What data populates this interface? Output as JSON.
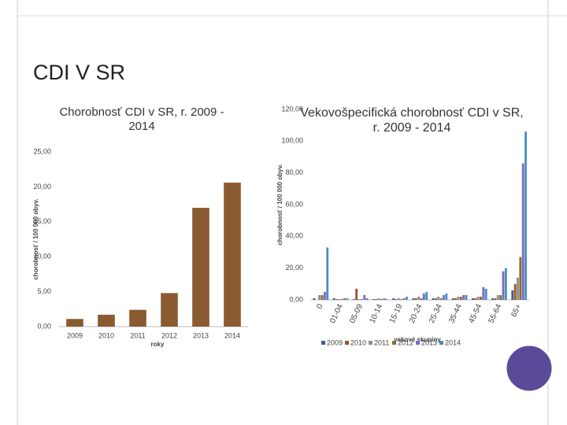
{
  "slide_title": "CDI V SR",
  "chart_data": [
    {
      "type": "bar",
      "title": "Chorobnosť CDI v SR, r. 2009 - 2014",
      "x_label": "roky",
      "y_label": "chorobnosť / 100 000 obyv.",
      "categories": [
        "2009",
        "2010",
        "2011",
        "2012",
        "2013",
        "2014"
      ],
      "values": [
        1.1,
        1.7,
        2.4,
        4.8,
        17.0,
        20.6
      ],
      "color": "#8a5a30",
      "ylim": [
        0,
        25
      ],
      "yticks": [
        {
          "value": 0,
          "label": "0,00"
        },
        {
          "value": 5,
          "label": "5,00"
        },
        {
          "value": 10,
          "label": "10,00"
        },
        {
          "value": 15,
          "label": "15,00"
        },
        {
          "value": 20,
          "label": "20,00"
        },
        {
          "value": 25,
          "label": "25,00"
        }
      ]
    },
    {
      "type": "bar",
      "title": "Vekovošpecifická chorobnosť CDI v SR, r. 2009 - 2014",
      "x_label": "vekové skupiny",
      "y_label": "chorobnosť / 100 000 obyv.",
      "categories": [
        "0",
        "01-04",
        "05-09",
        "10-14",
        "15-19",
        "20-24",
        "25-34",
        "35-44",
        "45-54",
        "55-64",
        "65+"
      ],
      "series": [
        {
          "name": "2009",
          "color": "#3f5f8a",
          "values": [
            1,
            1,
            0.5,
            0.5,
            1,
            1,
            1,
            1,
            1,
            1,
            6
          ]
        },
        {
          "name": "2010",
          "color": "#a0522d",
          "values": [
            0,
            0.5,
            7,
            0.5,
            0.5,
            1,
            1,
            1,
            1,
            1,
            10
          ]
        },
        {
          "name": "2011",
          "color": "#8c8c8c",
          "values": [
            3,
            0.5,
            0.5,
            1,
            1,
            2,
            2,
            2,
            2,
            3,
            14
          ]
        },
        {
          "name": "2012",
          "color": "#8b6d2e",
          "values": [
            3,
            0.5,
            0.5,
            0.5,
            0.5,
            1,
            1,
            2,
            2,
            3,
            27
          ]
        },
        {
          "name": "2013",
          "color": "#7b68c8",
          "values": [
            5,
            1,
            3,
            1,
            1,
            4,
            3,
            3,
            8,
            18,
            86
          ]
        },
        {
          "name": "2014",
          "color": "#4a90c0",
          "values": [
            33,
            1,
            1,
            0.5,
            2,
            5,
            4,
            3,
            7,
            20,
            106
          ]
        }
      ],
      "ylim": [
        0,
        120
      ],
      "yticks": [
        {
          "value": 0,
          "label": "0,00"
        },
        {
          "value": 20,
          "label": "20,00"
        },
        {
          "value": 40,
          "label": "40,00"
        },
        {
          "value": 60,
          "label": "60,00"
        },
        {
          "value": 80,
          "label": "80,00"
        },
        {
          "value": 100,
          "label": "100,00"
        },
        {
          "value": 120,
          "label": "120,00"
        }
      ]
    }
  ]
}
